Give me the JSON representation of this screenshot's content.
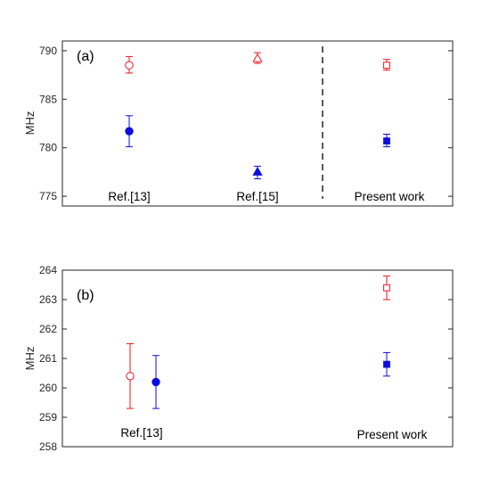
{
  "chart_data": [
    {
      "type": "scatter",
      "panel_label": "(a)",
      "ylabel": "MHz",
      "ylim": [
        774,
        791
      ],
      "yticks": [
        "775",
        "780",
        "785",
        "790"
      ],
      "grid": false,
      "group_labels": [
        "Ref.[13]",
        "Ref.[15]",
        "Present work"
      ],
      "divider": "dashed vertical line between Ref.[15] and Present work",
      "colors": {
        "red": "#e8191f",
        "blue": "#0d0de0"
      },
      "series": [
        {
          "color": "red",
          "points": [
            {
              "group": "Ref.[13]",
              "y": 788.5,
              "err_low": 787.7,
              "err_high": 789.4,
              "marker": "circle-open"
            },
            {
              "group": "Ref.[15]",
              "y": 789.2,
              "err_low": 788.7,
              "err_high": 789.8,
              "marker": "triangle-open"
            },
            {
              "group": "Present work",
              "y": 788.5,
              "err_low": 788.0,
              "err_high": 789.1,
              "marker": "square-open"
            }
          ]
        },
        {
          "color": "blue",
          "points": [
            {
              "group": "Ref.[13]",
              "y": 781.7,
              "err_low": 780.1,
              "err_high": 783.3,
              "marker": "circle-filled"
            },
            {
              "group": "Ref.[15]",
              "y": 777.5,
              "err_low": 776.8,
              "err_high": 778.1,
              "marker": "triangle-filled"
            },
            {
              "group": "Present work",
              "y": 780.7,
              "err_low": 780.1,
              "err_high": 781.4,
              "marker": "square-filled"
            }
          ]
        }
      ]
    },
    {
      "type": "scatter",
      "panel_label": "(b)",
      "ylabel": "MHz",
      "ylim": [
        258,
        264
      ],
      "yticks": [
        "258",
        "259",
        "260",
        "261",
        "262",
        "263",
        "264"
      ],
      "grid": false,
      "group_labels": [
        "Ref.[13]",
        "Present work"
      ],
      "colors": {
        "red": "#e8191f",
        "blue": "#0d0de0"
      },
      "series": [
        {
          "color": "red",
          "points": [
            {
              "group": "Ref.[13]",
              "y": 260.4,
              "err_low": 259.3,
              "err_high": 261.5,
              "marker": "circle-open"
            },
            {
              "group": "Present work",
              "y": 263.4,
              "err_low": 263.0,
              "err_high": 263.8,
              "marker": "square-open"
            }
          ]
        },
        {
          "color": "blue",
          "points": [
            {
              "group": "Ref.[13]",
              "y": 260.2,
              "err_low": 259.3,
              "err_high": 261.1,
              "marker": "circle-filled"
            },
            {
              "group": "Present work",
              "y": 260.8,
              "err_low": 260.4,
              "err_high": 261.2,
              "marker": "square-filled"
            }
          ]
        }
      ]
    }
  ]
}
